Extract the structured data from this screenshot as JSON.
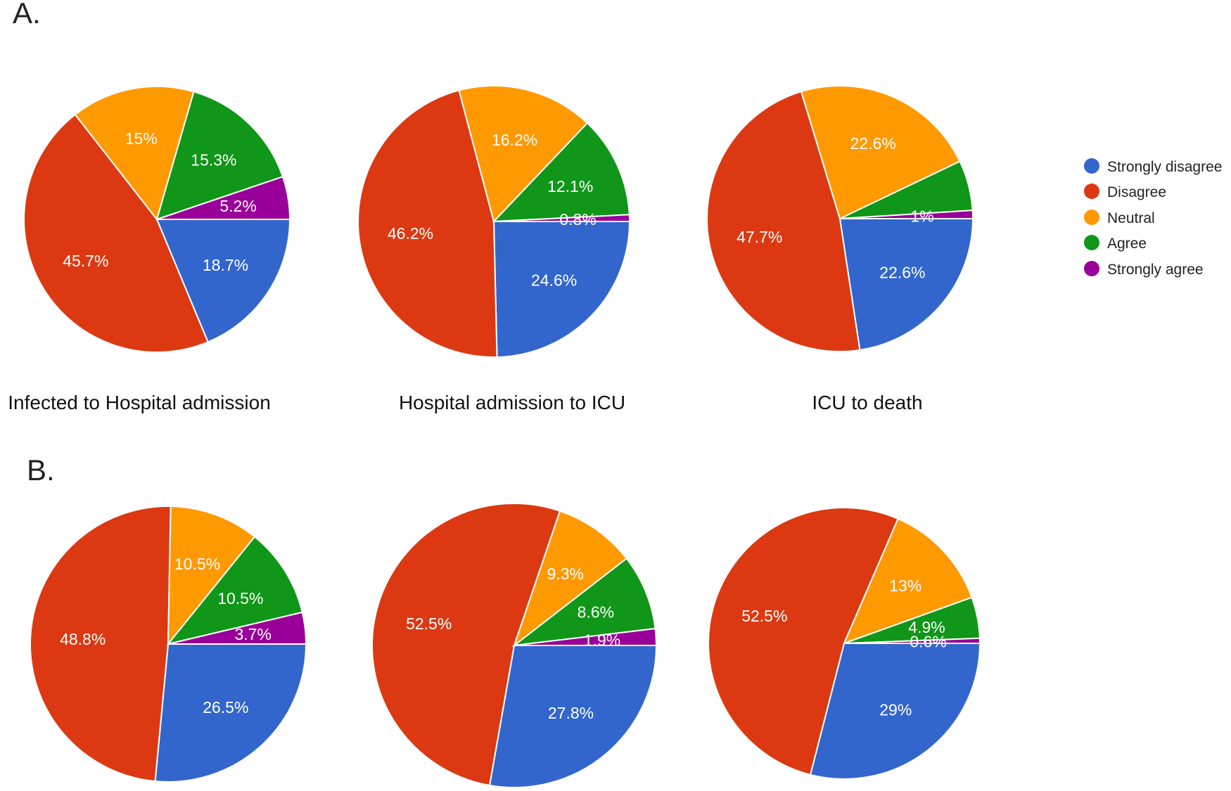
{
  "panels": [
    {
      "label": "A."
    },
    {
      "label": "B."
    }
  ],
  "captions": [
    "Infected to Hospital admission",
    "Hospital admission to ICU",
    "ICU to death"
  ],
  "legend": {
    "position": "right",
    "items": [
      {
        "name": "Strongly disagree",
        "color": "#3366cc"
      },
      {
        "name": "Disagree",
        "color": "#dc3912"
      },
      {
        "name": "Neutral",
        "color": "#ff9900"
      },
      {
        "name": "Agree",
        "color": "#109618"
      },
      {
        "name": "Strongly agree",
        "color": "#990099"
      }
    ]
  },
  "chart_data": [
    {
      "type": "pie",
      "panel": "A.",
      "title": "Infected to Hospital admission",
      "categories": [
        "Strongly disagree",
        "Disagree",
        "Neutral",
        "Agree",
        "Strongly agree"
      ],
      "values": [
        18.7,
        45.7,
        15,
        15.3,
        5.2
      ],
      "labels": [
        "18.7%",
        "45.7%",
        "15%",
        "15.3%",
        "5.2%"
      ]
    },
    {
      "type": "pie",
      "panel": "A.",
      "title": "Hospital admission to ICU",
      "categories": [
        "Strongly disagree",
        "Disagree",
        "Neutral",
        "Agree",
        "Strongly agree"
      ],
      "values": [
        24.6,
        46.2,
        16.2,
        12.1,
        0.8
      ],
      "labels": [
        "24.6%",
        "46.2%",
        "16.2%",
        "12.1%",
        "0.8%"
      ]
    },
    {
      "type": "pie",
      "panel": "A.",
      "title": "ICU to death",
      "categories": [
        "Strongly disagree",
        "Disagree",
        "Neutral",
        "Agree",
        "Strongly agree"
      ],
      "values": [
        22.6,
        47.7,
        22.6,
        6.1,
        1
      ],
      "labels": [
        "22.6%",
        "47.7%",
        "22.6%",
        "",
        "1%"
      ]
    },
    {
      "type": "pie",
      "panel": "B.",
      "title": "",
      "categories": [
        "Strongly disagree",
        "Disagree",
        "Neutral",
        "Agree",
        "Strongly agree"
      ],
      "values": [
        26.5,
        48.8,
        10.5,
        10.5,
        3.7
      ],
      "labels": [
        "26.5%",
        "48.8%",
        "10.5%",
        "10.5%",
        "3.7%"
      ]
    },
    {
      "type": "pie",
      "panel": "B.",
      "title": "",
      "categories": [
        "Strongly disagree",
        "Disagree",
        "Neutral",
        "Agree",
        "Strongly agree"
      ],
      "values": [
        27.8,
        52.5,
        9.3,
        8.6,
        1.9
      ],
      "labels": [
        "27.8%",
        "52.5%",
        "9.3%",
        "8.6%",
        "1.9%"
      ]
    },
    {
      "type": "pie",
      "panel": "B.",
      "title": "",
      "categories": [
        "Strongly disagree",
        "Disagree",
        "Neutral",
        "Agree",
        "Strongly agree"
      ],
      "values": [
        29,
        52.5,
        13,
        4.9,
        0.6
      ],
      "labels": [
        "29%",
        "52.5%",
        "13%",
        "4.9%",
        "0.6%"
      ]
    }
  ]
}
